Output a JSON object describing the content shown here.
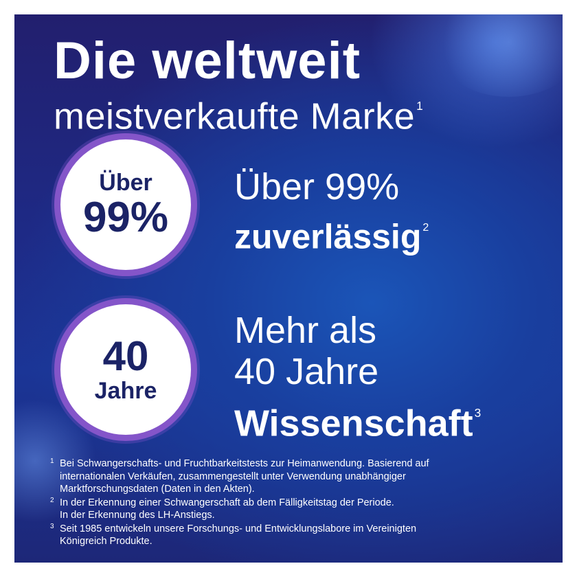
{
  "headline": {
    "line1": "Die weltweit",
    "line2": "meistverkaufte Marke",
    "line2_mark": "1"
  },
  "badges": [
    {
      "top": "Über",
      "main": "99%"
    },
    {
      "top": "40",
      "main": "Jahre"
    }
  ],
  "claims": [
    {
      "line1": "Über 99%",
      "bold": "zuverlässig",
      "mark": "2"
    },
    {
      "line1": "Mehr als",
      "line2": "40 Jahre",
      "bold": "Wissenschaft",
      "mark": "3"
    }
  ],
  "footnotes": [
    {
      "mark": "1",
      "lines": [
        "Bei Schwangerschafts- und Fruchtbarkeitstests zur Heimanwendung. Basierend auf",
        "internationalen Verkäufen, zusammengestellt unter Verwendung unabhängiger",
        "Marktforschungsdaten (Daten in den Akten)."
      ]
    },
    {
      "mark": "2",
      "lines": [
        "In der Erkennung einer Schwangerschaft ab dem Fälligkeitstag der Periode.",
        "In der Erkennung des LH-Anstiegs."
      ]
    },
    {
      "mark": "3",
      "lines": [
        "Seit 1985 entwickeln unsere Forschungs- und Entwicklungslabore im Vereinigten",
        "Königreich Produkte."
      ]
    }
  ],
  "colors": {
    "background_dark": "#221f6e",
    "background_mid": "#1b55b8",
    "badge_ring": "#8455c9",
    "badge_text": "#1b2366",
    "text": "#ffffff"
  }
}
